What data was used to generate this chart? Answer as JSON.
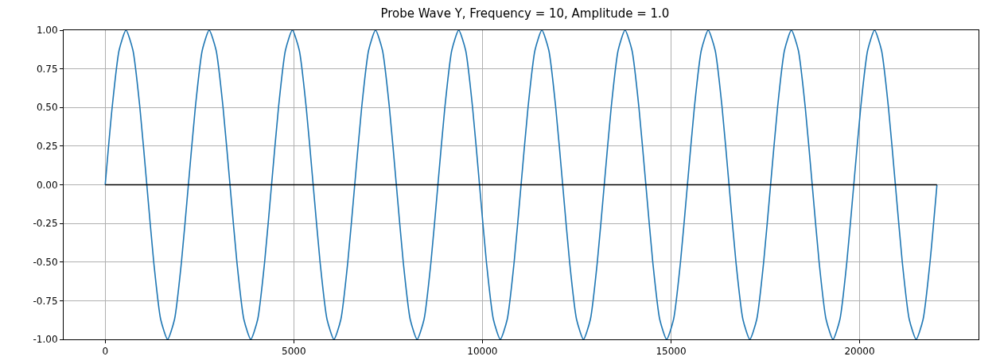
{
  "chart_data": {
    "type": "line",
    "title": "Probe Wave Y, Frequency = 10, Amplitude = 1.0",
    "series": [
      {
        "color": "#1f77b4",
        "x": [
          0,
          184,
          368,
          551,
          735,
          919,
          1103,
          1286,
          1470,
          1654,
          1838,
          2021,
          2205,
          2389,
          2573,
          2756,
          2940,
          3124,
          3308,
          3491,
          3675,
          3859,
          4043,
          4226,
          4410,
          4594,
          4778,
          4961,
          5145,
          5329,
          5513,
          5696,
          5880,
          6064,
          6248,
          6431,
          6615,
          6799,
          6983,
          7166,
          7350,
          7534,
          7718,
          7901,
          8085,
          8269,
          8453,
          8636,
          8820,
          9004,
          9188,
          9371,
          9555,
          9739,
          9923,
          10106,
          10290,
          10474,
          10658,
          10841,
          11025,
          11209,
          11393,
          11576,
          11760,
          11944,
          12128,
          12311,
          12495,
          12679,
          12863,
          13046,
          13230,
          13414,
          13598,
          13781,
          13965,
          14149,
          14333,
          14516,
          14700,
          14884,
          15068,
          15251,
          15435,
          15619,
          15803,
          15986,
          16170,
          16354,
          16538,
          16721,
          16905,
          17089,
          17273,
          17456,
          17640,
          17824,
          18008,
          18191,
          18375,
          18559,
          18743,
          18926,
          19110,
          19294,
          19478,
          19661,
          19845,
          20029,
          20213,
          20396,
          20580,
          20764,
          20948,
          21131,
          21315,
          21499,
          21683,
          21866,
          22050
        ],
        "values": [
          0,
          0.5,
          0.87,
          1,
          0.87,
          0.5,
          0,
          -0.5,
          -0.87,
          -1,
          -0.87,
          -0.5,
          0,
          0.5,
          0.87,
          1,
          0.87,
          0.5,
          0,
          -0.5,
          -0.87,
          -1,
          -0.87,
          -0.5,
          0,
          0.5,
          0.87,
          1,
          0.87,
          0.5,
          0,
          -0.5,
          -0.87,
          -1,
          -0.87,
          -0.5,
          0,
          0.5,
          0.87,
          1,
          0.87,
          0.5,
          0,
          -0.5,
          -0.87,
          -1,
          -0.87,
          -0.5,
          0,
          0.5,
          0.87,
          1,
          0.87,
          0.5,
          0,
          -0.5,
          -0.87,
          -1,
          -0.87,
          -0.5,
          0,
          0.5,
          0.87,
          1,
          0.87,
          0.5,
          0,
          -0.5,
          -0.87,
          -1,
          -0.87,
          -0.5,
          0,
          0.5,
          0.87,
          1,
          0.87,
          0.5,
          0,
          -0.5,
          -0.87,
          -1,
          -0.87,
          -0.5,
          0,
          0.5,
          0.87,
          1,
          0.87,
          0.5,
          0,
          -0.5,
          -0.87,
          -1,
          -0.87,
          -0.5,
          0,
          0.5,
          0.87,
          1,
          0.87,
          0.5,
          0,
          -0.5,
          -0.87,
          -1,
          -0.87,
          -0.5,
          0,
          0.5,
          0.87,
          1,
          0.87,
          0.5,
          0,
          -0.5,
          -0.87,
          -1,
          -0.87,
          -0.5,
          0
        ]
      },
      {
        "color": "#000000",
        "x": [
          0,
          22050
        ],
        "values": [
          0,
          0
        ]
      }
    ],
    "xlim": [
      -1102,
      23152
    ],
    "xticks": [
      0,
      5000,
      10000,
      15000,
      20000
    ],
    "ylim": [
      -1,
      1
    ],
    "yticks": [
      {
        "value": -1,
        "label": "-1.00"
      },
      {
        "value": -0.75,
        "label": "-0.75"
      },
      {
        "value": -0.5,
        "label": "-0.50"
      },
      {
        "value": -0.25,
        "label": "-0.25"
      },
      {
        "value": 0,
        "label": "0.00"
      },
      {
        "value": 0.25,
        "label": "0.25"
      },
      {
        "value": 0.5,
        "label": "0.50"
      },
      {
        "value": 0.75,
        "label": "0.75"
      },
      {
        "value": 1,
        "label": "1.00"
      }
    ],
    "grid": true,
    "marker": "none",
    "line_style": "solid"
  }
}
